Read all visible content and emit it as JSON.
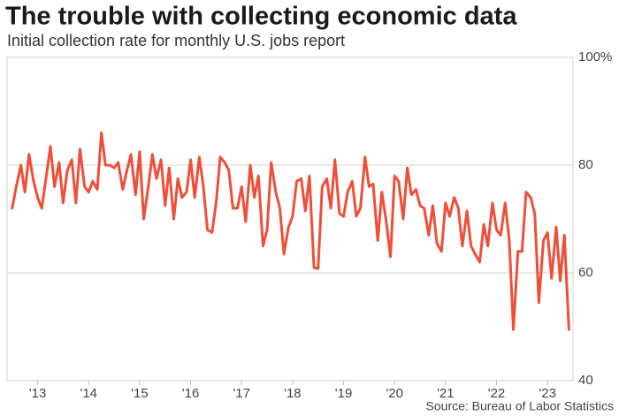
{
  "chart_data": {
    "type": "line",
    "title": "The trouble with collecting economic data",
    "subtitle": "Initial collection rate for monthly U.S. jobs report",
    "source": "Source: Bureau of Labor Statistics",
    "xlim": [
      2012.4,
      2023.5
    ],
    "xticks": [
      {
        "value": 2013,
        "label": "'13"
      },
      {
        "value": 2014,
        "label": "'14"
      },
      {
        "value": 2015,
        "label": "'15"
      },
      {
        "value": 2016,
        "label": "'16"
      },
      {
        "value": 2017,
        "label": "'17"
      },
      {
        "value": 2018,
        "label": "'18"
      },
      {
        "value": 2019,
        "label": "'19"
      },
      {
        "value": 2020,
        "label": "'20"
      },
      {
        "value": 2021,
        "label": "'21"
      },
      {
        "value": 2022,
        "label": "'22"
      },
      {
        "value": 2023,
        "label": "'23"
      }
    ],
    "ylim": [
      40,
      100
    ],
    "yticks": [
      40,
      60,
      80,
      {
        "value": 100,
        "label": "100%"
      }
    ],
    "grid": true,
    "x": [
      2012.5,
      2012.58,
      2012.67,
      2012.75,
      2012.83,
      2012.92,
      2013,
      2013.08,
      2013.17,
      2013.25,
      2013.33,
      2013.42,
      2013.5,
      2013.58,
      2013.67,
      2013.75,
      2013.83,
      2013.92,
      2014,
      2014.08,
      2014.17,
      2014.25,
      2014.33,
      2014.42,
      2014.5,
      2014.58,
      2014.67,
      2014.75,
      2014.83,
      2014.92,
      2015,
      2015.08,
      2015.17,
      2015.25,
      2015.33,
      2015.42,
      2015.5,
      2015.58,
      2015.67,
      2015.75,
      2015.83,
      2015.92,
      2016,
      2016.08,
      2016.17,
      2016.25,
      2016.33,
      2016.42,
      2016.5,
      2016.58,
      2016.67,
      2016.75,
      2016.83,
      2016.92,
      2017,
      2017.08,
      2017.17,
      2017.25,
      2017.33,
      2017.42,
      2017.5,
      2017.58,
      2017.67,
      2017.75,
      2017.83,
      2017.92,
      2018,
      2018.08,
      2018.17,
      2018.25,
      2018.33,
      2018.42,
      2018.5,
      2018.58,
      2018.67,
      2018.75,
      2018.83,
      2018.92,
      2019,
      2019.08,
      2019.17,
      2019.25,
      2019.33,
      2019.42,
      2019.5,
      2019.58,
      2019.67,
      2019.75,
      2019.83,
      2019.92,
      2020,
      2020.08,
      2020.17,
      2020.25,
      2020.33,
      2020.42,
      2020.5,
      2020.58,
      2020.67,
      2020.75,
      2020.83,
      2020.92,
      2021,
      2021.08,
      2021.17,
      2021.25,
      2021.33,
      2021.42,
      2021.5,
      2021.58,
      2021.67,
      2021.75,
      2021.83,
      2021.92,
      2022,
      2022.08,
      2022.17,
      2022.25,
      2022.33,
      2022.42,
      2022.5,
      2022.58,
      2022.67,
      2022.75,
      2022.83,
      2022.92,
      2023,
      2023.08,
      2023.17,
      2023.25,
      2023.33,
      2023.42
    ],
    "series": [
      {
        "color": "#ef4f38",
        "values": [
          72,
          76,
          80,
          75,
          82,
          77,
          74,
          72,
          78,
          83.5,
          76,
          80.5,
          73,
          79,
          81,
          73,
          83,
          76,
          75,
          77,
          75.5,
          86,
          80,
          80,
          79.5,
          80.5,
          75.5,
          79,
          82,
          74.5,
          82.5,
          70,
          76,
          82,
          77.5,
          81,
          72.5,
          79.5,
          70,
          77.5,
          74,
          75,
          81,
          74,
          81.5,
          76,
          68,
          67.5,
          73,
          81.5,
          80.5,
          79,
          72,
          72,
          76,
          69.5,
          80,
          74,
          78,
          65,
          68,
          80.5,
          75,
          72,
          63.5,
          68.5,
          70.5,
          77,
          77.5,
          71.5,
          78,
          61,
          60.8,
          76,
          77.5,
          72,
          81,
          71,
          70.5,
          75,
          77,
          70.5,
          72,
          81.5,
          76,
          76.5,
          66,
          75,
          70,
          63,
          78,
          77,
          70,
          79.5,
          74.5,
          75.5,
          72.5,
          72,
          67,
          72.5,
          65.5,
          64,
          73,
          70.5,
          74,
          72,
          65,
          71.5,
          65,
          63.5,
          62,
          69,
          65,
          73,
          68,
          67,
          73,
          66,
          49.5,
          64,
          64,
          75,
          74,
          71,
          54.5,
          66,
          67.5,
          59,
          68.5,
          58.5,
          67,
          49.5
        ]
      }
    ]
  }
}
